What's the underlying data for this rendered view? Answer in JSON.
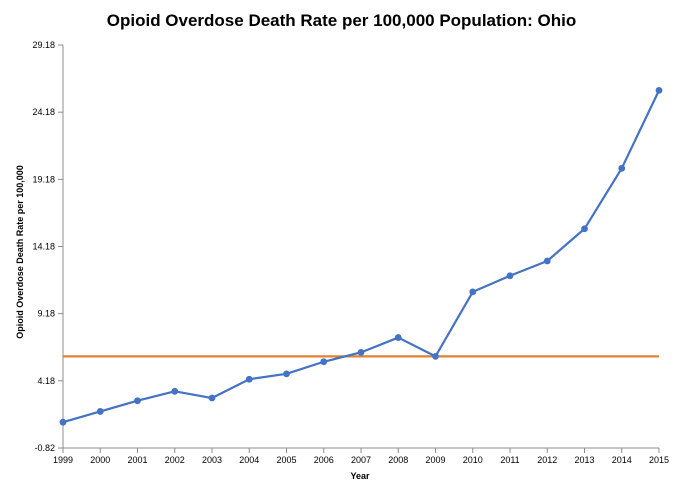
{
  "chart_data": {
    "type": "line",
    "title": "Opioid Overdose Death Rate per 100,000 Population: Ohio",
    "xlabel": "Year",
    "ylabel": "Opioid Overdose Death Rate per 100,000",
    "x": [
      "1999",
      "2000",
      "2001",
      "2002",
      "2003",
      "2004",
      "2005",
      "2006",
      "2007",
      "2008",
      "2009",
      "2010",
      "2011",
      "2012",
      "2013",
      "2014",
      "2015"
    ],
    "ylim": [
      -0.82,
      29.18
    ],
    "yticks": [
      -0.82,
      4.18,
      9.18,
      14.18,
      19.18,
      24.18,
      29.18
    ],
    "ytick_labels": [
      "-0.82",
      "4.18",
      "9.18",
      "14.18",
      "19.18",
      "24.18",
      "29.18"
    ],
    "grid": false,
    "legend": "none",
    "series": [
      {
        "values": [
          1.1,
          1.9,
          2.7,
          3.4,
          2.9,
          4.3,
          4.7,
          5.6,
          6.3,
          7.4,
          6.0,
          10.8,
          12.0,
          13.1,
          15.5,
          20.0,
          25.8
        ],
        "color": "#4472C4",
        "markers": true
      }
    ],
    "reference_line": {
      "y": 6.0,
      "color": "#E0822E"
    }
  }
}
